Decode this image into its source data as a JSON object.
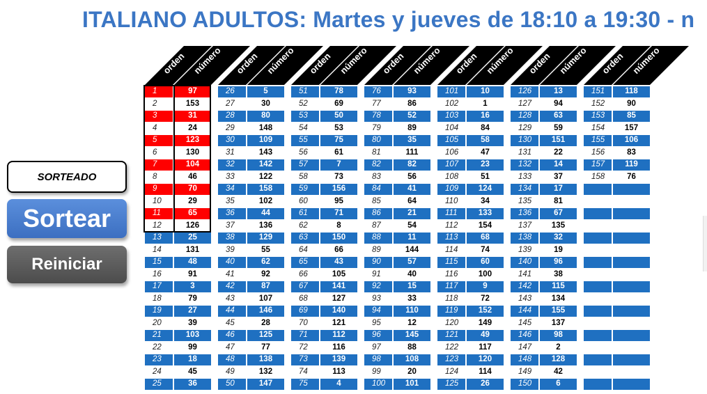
{
  "title": "ITALIANO ADULTOS: Martes y jueves de 18:10 a 19:30 - n",
  "buttons": {
    "sorteado_label": "SORTEADO",
    "sortear_label": "Sortear",
    "reiniciar_label": "Reiniciar"
  },
  "headers": {
    "orden": "orden",
    "numero": "número"
  },
  "colors": {
    "title": "#3b76c4",
    "blue": "#1f70c1",
    "red": "#ff0000",
    "sortear": "#4a7fd0",
    "reiniciar": "#5a5a5a"
  },
  "columns": [
    {
      "rows": [
        {
          "orden": "1",
          "numero": "97",
          "drawn": true
        },
        {
          "orden": "2",
          "numero": "153"
        },
        {
          "orden": "3",
          "numero": "31",
          "drawn": true
        },
        {
          "orden": "4",
          "numero": "24"
        },
        {
          "orden": "5",
          "numero": "123",
          "drawn": true
        },
        {
          "orden": "6",
          "numero": "130"
        },
        {
          "orden": "7",
          "numero": "104",
          "drawn": true
        },
        {
          "orden": "8",
          "numero": "46"
        },
        {
          "orden": "9",
          "numero": "70",
          "drawn": true
        },
        {
          "orden": "10",
          "numero": "29"
        },
        {
          "orden": "11",
          "numero": "65",
          "drawn": true
        },
        {
          "orden": "12",
          "numero": "126"
        },
        {
          "orden": "13",
          "numero": "25"
        },
        {
          "orden": "14",
          "numero": "131"
        },
        {
          "orden": "15",
          "numero": "48"
        },
        {
          "orden": "16",
          "numero": "91"
        },
        {
          "orden": "17",
          "numero": "3"
        },
        {
          "orden": "18",
          "numero": "79"
        },
        {
          "orden": "19",
          "numero": "27"
        },
        {
          "orden": "20",
          "numero": "39"
        },
        {
          "orden": "21",
          "numero": "103"
        },
        {
          "orden": "22",
          "numero": "99"
        },
        {
          "orden": "23",
          "numero": "18"
        },
        {
          "orden": "24",
          "numero": "45"
        },
        {
          "orden": "25",
          "numero": "36"
        }
      ]
    },
    {
      "rows": [
        {
          "orden": "26",
          "numero": "5"
        },
        {
          "orden": "27",
          "numero": "30"
        },
        {
          "orden": "28",
          "numero": "80"
        },
        {
          "orden": "29",
          "numero": "148"
        },
        {
          "orden": "30",
          "numero": "109"
        },
        {
          "orden": "31",
          "numero": "143"
        },
        {
          "orden": "32",
          "numero": "142"
        },
        {
          "orden": "33",
          "numero": "122"
        },
        {
          "orden": "34",
          "numero": "158"
        },
        {
          "orden": "35",
          "numero": "102"
        },
        {
          "orden": "36",
          "numero": "44"
        },
        {
          "orden": "37",
          "numero": "136"
        },
        {
          "orden": "38",
          "numero": "129"
        },
        {
          "orden": "39",
          "numero": "55"
        },
        {
          "orden": "40",
          "numero": "62"
        },
        {
          "orden": "41",
          "numero": "92"
        },
        {
          "orden": "42",
          "numero": "87"
        },
        {
          "orden": "43",
          "numero": "107"
        },
        {
          "orden": "44",
          "numero": "146"
        },
        {
          "orden": "45",
          "numero": "28"
        },
        {
          "orden": "46",
          "numero": "125"
        },
        {
          "orden": "47",
          "numero": "77"
        },
        {
          "orden": "48",
          "numero": "138"
        },
        {
          "orden": "49",
          "numero": "132"
        },
        {
          "orden": "50",
          "numero": "147"
        }
      ]
    },
    {
      "rows": [
        {
          "orden": "51",
          "numero": "78"
        },
        {
          "orden": "52",
          "numero": "69"
        },
        {
          "orden": "53",
          "numero": "50"
        },
        {
          "orden": "54",
          "numero": "53"
        },
        {
          "orden": "55",
          "numero": "75"
        },
        {
          "orden": "56",
          "numero": "61"
        },
        {
          "orden": "57",
          "numero": "7"
        },
        {
          "orden": "58",
          "numero": "73"
        },
        {
          "orden": "59",
          "numero": "156"
        },
        {
          "orden": "60",
          "numero": "95"
        },
        {
          "orden": "61",
          "numero": "71"
        },
        {
          "orden": "62",
          "numero": "8"
        },
        {
          "orden": "63",
          "numero": "150"
        },
        {
          "orden": "64",
          "numero": "66"
        },
        {
          "orden": "65",
          "numero": "43"
        },
        {
          "orden": "66",
          "numero": "105"
        },
        {
          "orden": "67",
          "numero": "141"
        },
        {
          "orden": "68",
          "numero": "127"
        },
        {
          "orden": "69",
          "numero": "140"
        },
        {
          "orden": "70",
          "numero": "121"
        },
        {
          "orden": "71",
          "numero": "112"
        },
        {
          "orden": "72",
          "numero": "116"
        },
        {
          "orden": "73",
          "numero": "139"
        },
        {
          "orden": "74",
          "numero": "113"
        },
        {
          "orden": "75",
          "numero": "4"
        }
      ]
    },
    {
      "rows": [
        {
          "orden": "76",
          "numero": "93"
        },
        {
          "orden": "77",
          "numero": "86"
        },
        {
          "orden": "78",
          "numero": "52"
        },
        {
          "orden": "79",
          "numero": "89"
        },
        {
          "orden": "80",
          "numero": "35"
        },
        {
          "orden": "81",
          "numero": "111"
        },
        {
          "orden": "82",
          "numero": "82"
        },
        {
          "orden": "83",
          "numero": "56"
        },
        {
          "orden": "84",
          "numero": "41"
        },
        {
          "orden": "85",
          "numero": "64"
        },
        {
          "orden": "86",
          "numero": "21"
        },
        {
          "orden": "87",
          "numero": "54"
        },
        {
          "orden": "88",
          "numero": "11"
        },
        {
          "orden": "89",
          "numero": "144"
        },
        {
          "orden": "90",
          "numero": "57"
        },
        {
          "orden": "91",
          "numero": "40"
        },
        {
          "orden": "92",
          "numero": "15"
        },
        {
          "orden": "93",
          "numero": "33"
        },
        {
          "orden": "94",
          "numero": "110"
        },
        {
          "orden": "95",
          "numero": "12"
        },
        {
          "orden": "96",
          "numero": "145"
        },
        {
          "orden": "97",
          "numero": "88"
        },
        {
          "orden": "98",
          "numero": "108"
        },
        {
          "orden": "99",
          "numero": "20"
        },
        {
          "orden": "100",
          "numero": "101"
        }
      ]
    },
    {
      "rows": [
        {
          "orden": "101",
          "numero": "10"
        },
        {
          "orden": "102",
          "numero": "1"
        },
        {
          "orden": "103",
          "numero": "16"
        },
        {
          "orden": "104",
          "numero": "84"
        },
        {
          "orden": "105",
          "numero": "58"
        },
        {
          "orden": "106",
          "numero": "47"
        },
        {
          "orden": "107",
          "numero": "23"
        },
        {
          "orden": "108",
          "numero": "51"
        },
        {
          "orden": "109",
          "numero": "124"
        },
        {
          "orden": "110",
          "numero": "34"
        },
        {
          "orden": "111",
          "numero": "133"
        },
        {
          "orden": "112",
          "numero": "154"
        },
        {
          "orden": "113",
          "numero": "68"
        },
        {
          "orden": "114",
          "numero": "74"
        },
        {
          "orden": "115",
          "numero": "60"
        },
        {
          "orden": "116",
          "numero": "100"
        },
        {
          "orden": "117",
          "numero": "9"
        },
        {
          "orden": "118",
          "numero": "72"
        },
        {
          "orden": "119",
          "numero": "152"
        },
        {
          "orden": "120",
          "numero": "149"
        },
        {
          "orden": "121",
          "numero": "49"
        },
        {
          "orden": "122",
          "numero": "117"
        },
        {
          "orden": "123",
          "numero": "120"
        },
        {
          "orden": "124",
          "numero": "114"
        },
        {
          "orden": "125",
          "numero": "26"
        }
      ]
    },
    {
      "rows": [
        {
          "orden": "126",
          "numero": "13"
        },
        {
          "orden": "127",
          "numero": "94"
        },
        {
          "orden": "128",
          "numero": "63"
        },
        {
          "orden": "129",
          "numero": "59"
        },
        {
          "orden": "130",
          "numero": "151"
        },
        {
          "orden": "131",
          "numero": "22"
        },
        {
          "orden": "132",
          "numero": "14"
        },
        {
          "orden": "133",
          "numero": "37"
        },
        {
          "orden": "134",
          "numero": "17"
        },
        {
          "orden": "135",
          "numero": "81"
        },
        {
          "orden": "136",
          "numero": "67"
        },
        {
          "orden": "137",
          "numero": "135"
        },
        {
          "orden": "138",
          "numero": "32"
        },
        {
          "orden": "139",
          "numero": "19"
        },
        {
          "orden": "140",
          "numero": "96"
        },
        {
          "orden": "141",
          "numero": "38"
        },
        {
          "orden": "142",
          "numero": "115"
        },
        {
          "orden": "143",
          "numero": "134"
        },
        {
          "orden": "144",
          "numero": "155"
        },
        {
          "orden": "145",
          "numero": "137"
        },
        {
          "orden": "146",
          "numero": "98"
        },
        {
          "orden": "147",
          "numero": "2"
        },
        {
          "orden": "148",
          "numero": "128"
        },
        {
          "orden": "149",
          "numero": "42"
        },
        {
          "orden": "150",
          "numero": "6"
        }
      ]
    },
    {
      "rows": [
        {
          "orden": "151",
          "numero": "118"
        },
        {
          "orden": "152",
          "numero": "90"
        },
        {
          "orden": "153",
          "numero": "85"
        },
        {
          "orden": "154",
          "numero": "157"
        },
        {
          "orden": "155",
          "numero": "106"
        },
        {
          "orden": "156",
          "numero": "83"
        },
        {
          "orden": "157",
          "numero": "119"
        },
        {
          "orden": "158",
          "numero": "76"
        },
        {
          "orden": "",
          "numero": ""
        },
        {
          "orden": "",
          "numero": ""
        },
        {
          "orden": "",
          "numero": ""
        },
        {
          "orden": "",
          "numero": ""
        },
        {
          "orden": "",
          "numero": ""
        },
        {
          "orden": "",
          "numero": ""
        },
        {
          "orden": "",
          "numero": ""
        },
        {
          "orden": "",
          "numero": ""
        },
        {
          "orden": "",
          "numero": ""
        },
        {
          "orden": "",
          "numero": ""
        },
        {
          "orden": "",
          "numero": ""
        },
        {
          "orden": "",
          "numero": ""
        },
        {
          "orden": "",
          "numero": ""
        },
        {
          "orden": "",
          "numero": ""
        },
        {
          "orden": "",
          "numero": ""
        },
        {
          "orden": "",
          "numero": ""
        },
        {
          "orden": "",
          "numero": ""
        }
      ]
    }
  ]
}
